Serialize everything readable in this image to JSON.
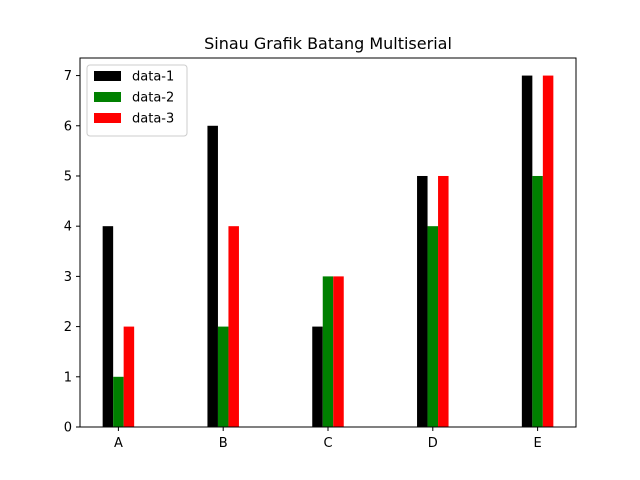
{
  "chart_data": {
    "type": "bar",
    "title": "Sinau Grafik Batang Multiserial",
    "xlabel": "",
    "ylabel": "",
    "categories": [
      "A",
      "B",
      "C",
      "D",
      "E"
    ],
    "series": [
      {
        "name": "data-1",
        "color": "#000000",
        "values": [
          4,
          6,
          2,
          5,
          7
        ]
      },
      {
        "name": "data-2",
        "color": "#008000",
        "values": [
          1,
          2,
          3,
          4,
          5
        ]
      },
      {
        "name": "data-3",
        "color": "#ff0000",
        "values": [
          2,
          4,
          3,
          5,
          7
        ]
      }
    ],
    "ylim": [
      0,
      7.35
    ],
    "yticks": [
      "0",
      "1",
      "2",
      "3",
      "4",
      "5",
      "6",
      "7"
    ],
    "grid": false,
    "legend": "top-left"
  }
}
